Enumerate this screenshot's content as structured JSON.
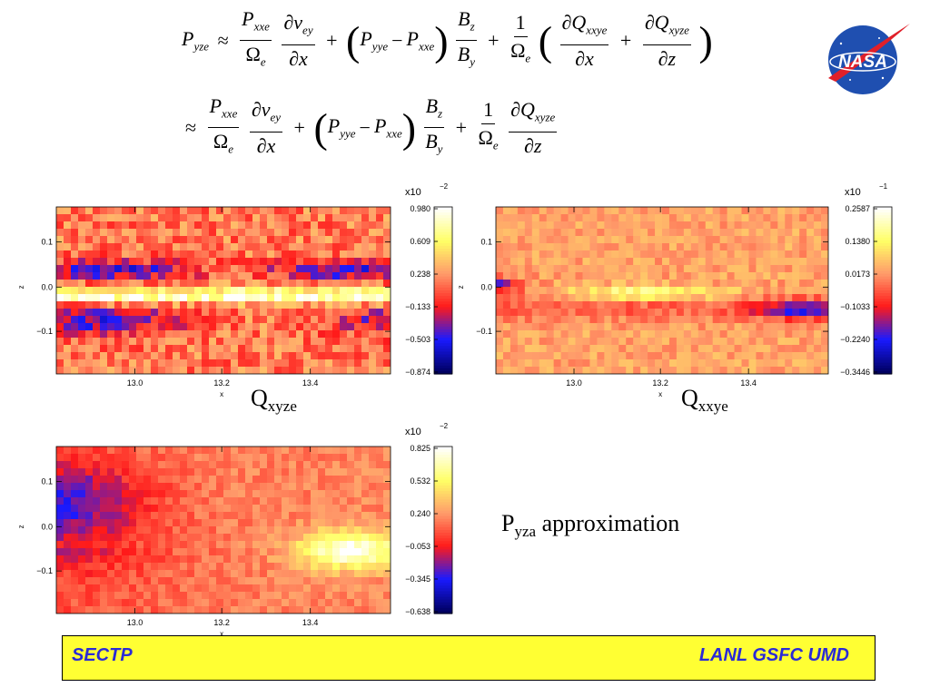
{
  "equation": {
    "line1": {
      "lhs": "P",
      "lhs_sub": "yze",
      "approx": "≈",
      "t1_num": "P",
      "t1_num_sub": "xxe",
      "t1_den": "Ω",
      "t1_den_sub": "e",
      "t2_num": "∂v",
      "t2_num_sub": "ey",
      "t2_den": "∂x",
      "plus": "+",
      "p_a": "P",
      "p_a_sub": "yye",
      "minus": "−",
      "p_b": "P",
      "p_b_sub": "xxe",
      "t3_num": "B",
      "t3_num_sub": "z",
      "t3_den": "B",
      "t3_den_sub": "y",
      "t4_num": "1",
      "t4_den": "Ω",
      "t4_den_sub": "e",
      "t5_num": "∂Q",
      "t5_num_sub": "xxye",
      "t5_den": "∂x",
      "t6_num": "∂Q",
      "t6_num_sub": "xyze",
      "t6_den": "∂z"
    },
    "line2": {
      "approx": "≈",
      "t1_num": "P",
      "t1_num_sub": "xxe",
      "t1_den": "Ω",
      "t1_den_sub": "e",
      "t2_num": "∂v",
      "t2_num_sub": "ey",
      "t2_den": "∂x",
      "plus": "+",
      "p_a": "P",
      "p_a_sub": "yye",
      "minus": "−",
      "p_b": "P",
      "p_b_sub": "xxe",
      "t3_num": "B",
      "t3_num_sub": "z",
      "t3_den": "B",
      "t3_den_sub": "y",
      "t4_num": "1",
      "t4_den": "Ω",
      "t4_den_sub": "e",
      "t6_num": "∂Q",
      "t6_num_sub": "xyze",
      "t6_den": "∂z"
    }
  },
  "logo": {
    "text": "NASA",
    "circle_color": "#1f4fb0",
    "swoosh_color": "#e0202a"
  },
  "colormap": [
    "#000060",
    "#1a1aff",
    "#ff1a1a",
    "#ff9a6a",
    "#ffff66",
    "#ffffff"
  ],
  "chart_data": [
    {
      "type": "heatmap",
      "caption": "Q",
      "caption_sub": "xyze",
      "xlabel": "x",
      "ylabel": "z",
      "xticks": [
        "13.0",
        "13.2",
        "13.4"
      ],
      "yticks": [
        "0.1",
        "0.0",
        "−0.1"
      ],
      "colorbar_exponent": "x10",
      "colorbar_exponent_power": "−2",
      "colorbar_ticks": [
        "0.980",
        "0.609",
        "0.238",
        "−0.133",
        "−0.503",
        "−0.874"
      ],
      "range": [
        -0.874,
        0.98
      ]
    },
    {
      "type": "heatmap",
      "caption": "Q",
      "caption_sub": "xxye",
      "xlabel": "x",
      "ylabel": "z",
      "xticks": [
        "13.0",
        "13.2",
        "13.4"
      ],
      "yticks": [
        "0.1",
        "0.0",
        "−0.1"
      ],
      "colorbar_exponent": "x10",
      "colorbar_exponent_power": "−1",
      "colorbar_ticks": [
        "0.2587",
        "0.1380",
        "0.0173",
        "−0.1033",
        "−0.2240",
        "−0.3446"
      ],
      "range": [
        -0.3446,
        0.2587
      ]
    },
    {
      "type": "heatmap",
      "caption": "P",
      "caption_sub": "yza",
      "caption_tail": " approximation",
      "xlabel": "x",
      "ylabel": "z",
      "xticks": [
        "13.0",
        "13.2",
        "13.4"
      ],
      "yticks": [
        "0.1",
        "0.0",
        "−0.1"
      ],
      "colorbar_exponent": "x10",
      "colorbar_exponent_power": "−2",
      "colorbar_ticks": [
        "0.825",
        "0.532",
        "0.240",
        "−0.053",
        "−0.345",
        "−0.638"
      ],
      "range": [
        -0.638,
        0.825
      ]
    }
  ],
  "footer": {
    "left": "SECTP",
    "right": "LANL GSFC UMD",
    "bg_color": "#ffff33",
    "text_color": "#2a2ad6"
  }
}
